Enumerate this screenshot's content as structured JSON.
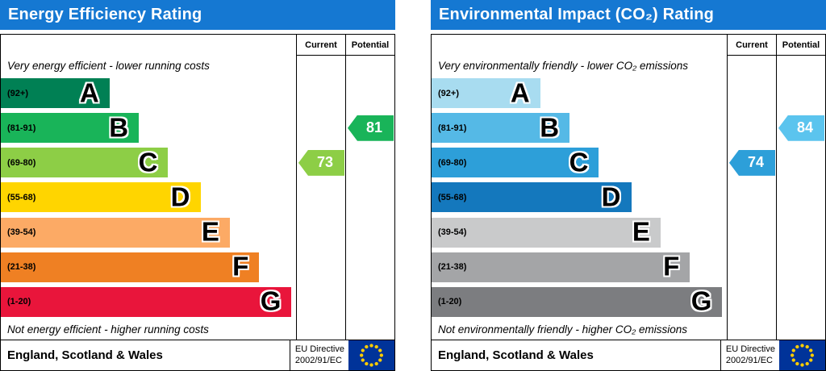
{
  "charts": [
    {
      "title": "Energy Efficiency Rating",
      "header_color": "#1578d2",
      "columns": {
        "current": "Current",
        "potential": "Potential"
      },
      "top_caption": "Very energy efficient - lower running costs",
      "bottom_caption": "Not energy efficient - higher running costs",
      "bands": [
        {
          "letter": "A",
          "range": "(92+)",
          "color": "#008054",
          "width_pct": 37
        },
        {
          "letter": "B",
          "range": "(81-91)",
          "color": "#19b459",
          "width_pct": 47
        },
        {
          "letter": "C",
          "range": "(69-80)",
          "color": "#8dce46",
          "width_pct": 57
        },
        {
          "letter": "D",
          "range": "(55-68)",
          "color": "#ffd500",
          "width_pct": 68
        },
        {
          "letter": "E",
          "range": "(39-54)",
          "color": "#fcaa65",
          "width_pct": 78
        },
        {
          "letter": "F",
          "range": "(21-38)",
          "color": "#ef8023",
          "width_pct": 88
        },
        {
          "letter": "G",
          "range": "(1-20)",
          "color": "#e9153b",
          "width_pct": 99
        }
      ],
      "current": {
        "value": 73,
        "band_index": 2,
        "color": "#8dce46"
      },
      "potential": {
        "value": 81,
        "band_index": 1,
        "color": "#19b459"
      },
      "footer": {
        "region": "England, Scotland & Wales",
        "directive_line1": "EU Directive",
        "directive_line2": "2002/91/EC"
      }
    },
    {
      "title": "Environmental Impact (CO₂) Rating",
      "header_color": "#1578d2",
      "columns": {
        "current": "Current",
        "potential": "Potential"
      },
      "top_caption": "Very environmentally friendly - lower CO₂ emissions",
      "bottom_caption": "Not environmentally friendly - higher CO₂ emissions",
      "bands": [
        {
          "letter": "A",
          "range": "(92+)",
          "color": "#a8dcf0",
          "width_pct": 37
        },
        {
          "letter": "B",
          "range": "(81-91)",
          "color": "#55b9e6",
          "width_pct": 47
        },
        {
          "letter": "C",
          "range": "(69-80)",
          "color": "#2d9fd9",
          "width_pct": 57
        },
        {
          "letter": "D",
          "range": "(55-68)",
          "color": "#1478bd",
          "width_pct": 68
        },
        {
          "letter": "E",
          "range": "(39-54)",
          "color": "#c9cacb",
          "width_pct": 78
        },
        {
          "letter": "F",
          "range": "(21-38)",
          "color": "#a4a5a7",
          "width_pct": 88
        },
        {
          "letter": "G",
          "range": "(1-20)",
          "color": "#7c7d80",
          "width_pct": 99
        }
      ],
      "current": {
        "value": 74,
        "band_index": 2,
        "color": "#2d9fd9"
      },
      "potential": {
        "value": 84,
        "band_index": 1,
        "color": "#5bc4ee"
      },
      "footer": {
        "region": "England, Scotland & Wales",
        "directive_line1": "EU Directive",
        "directive_line2": "2002/91/EC"
      }
    }
  ],
  "chart_data": [
    {
      "type": "bar",
      "title": "Energy Efficiency Rating",
      "categories": [
        "A (92+)",
        "B (81-91)",
        "C (69-80)",
        "D (55-68)",
        "E (39-54)",
        "F (21-38)",
        "G (1-20)"
      ],
      "series": [
        {
          "name": "Current",
          "value": 73,
          "band": "C"
        },
        {
          "name": "Potential",
          "value": 81,
          "band": "B"
        }
      ],
      "value_range": [
        1,
        100
      ],
      "region": "England, Scotland & Wales",
      "directive": "EU Directive 2002/91/EC"
    },
    {
      "type": "bar",
      "title": "Environmental Impact (CO₂) Rating",
      "categories": [
        "A (92+)",
        "B (81-91)",
        "C (69-80)",
        "D (55-68)",
        "E (39-54)",
        "F (21-38)",
        "G (1-20)"
      ],
      "series": [
        {
          "name": "Current",
          "value": 74,
          "band": "C"
        },
        {
          "name": "Potential",
          "value": 84,
          "band": "B"
        }
      ],
      "value_range": [
        1,
        100
      ],
      "region": "England, Scotland & Wales",
      "directive": "EU Directive 2002/91/EC"
    }
  ]
}
